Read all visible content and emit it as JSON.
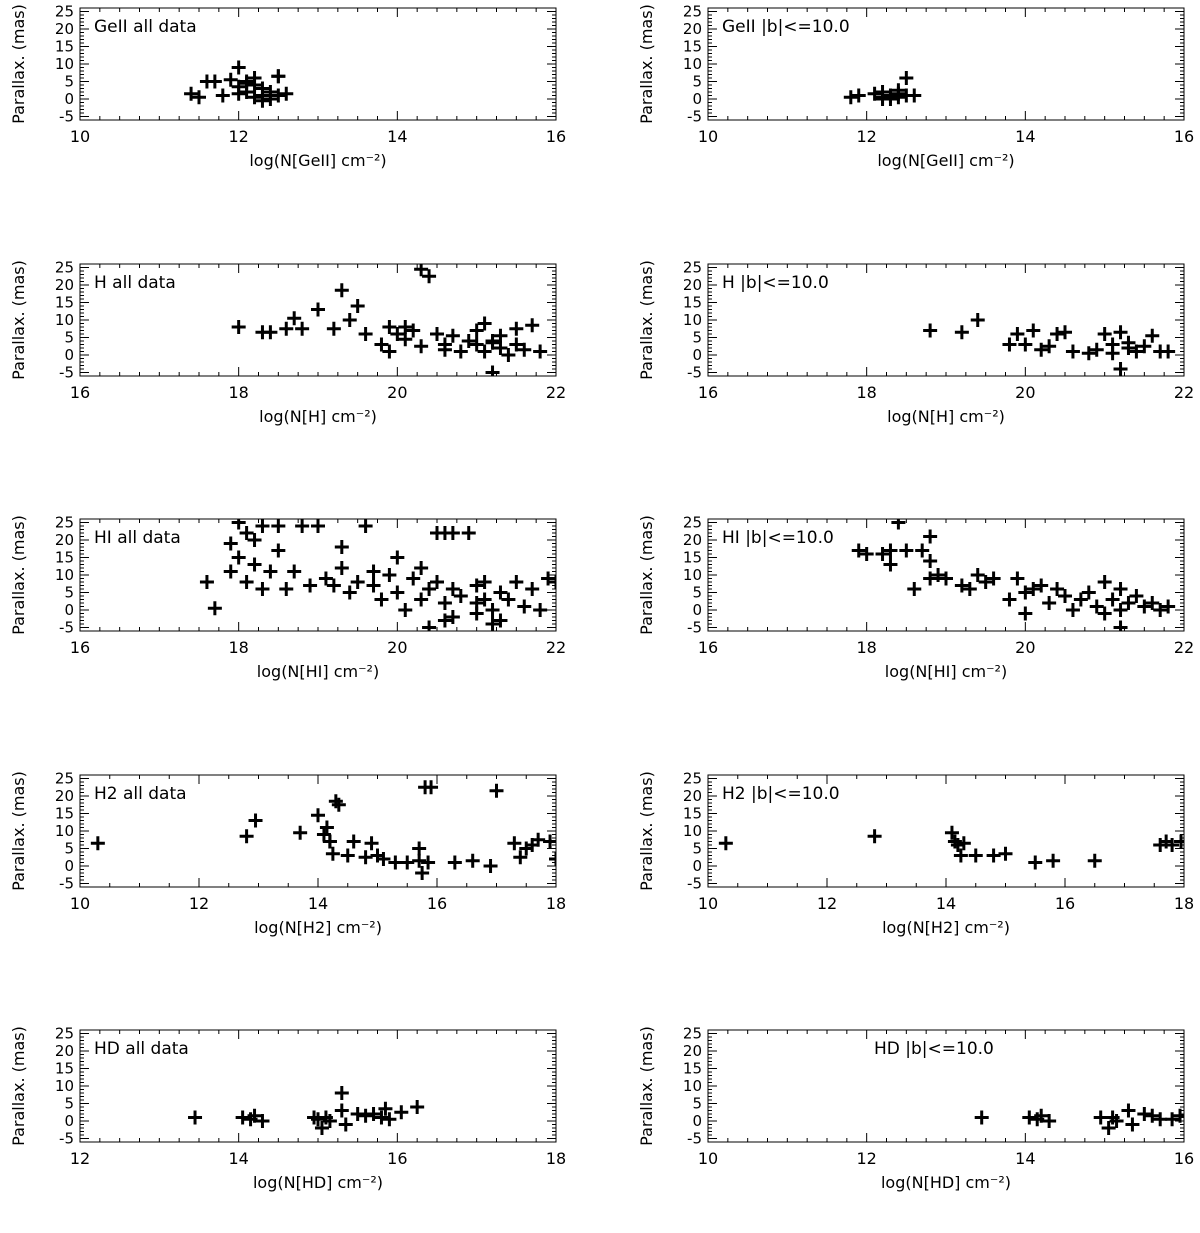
{
  "figure": {
    "y_label": "Parallax. (mas)",
    "y_ticks": [
      "25",
      "20",
      "15",
      "10",
      "5",
      "0",
      "-5"
    ]
  },
  "chart_data": [
    {
      "type": "scatter",
      "title": "GeII all data",
      "xlabel": "log(N[GeII] cm⁻²)",
      "ylabel": "Parallax. (mas)",
      "xlim": [
        10,
        16
      ],
      "ylim": [
        -6,
        26
      ],
      "xticks": [
        10,
        12,
        14,
        16
      ],
      "x": [
        11.4,
        11.5,
        11.6,
        11.7,
        11.8,
        11.9,
        12.0,
        12.0,
        12.1,
        12.1,
        12.2,
        12.2,
        12.3,
        12.3,
        12.4,
        12.4,
        12.5,
        12.5,
        12.6,
        12.0,
        12.1,
        12.2,
        12.3,
        12.5
      ],
      "y": [
        1.5,
        0.5,
        5.0,
        5.0,
        1.0,
        5.5,
        9.0,
        3.5,
        5.0,
        2.0,
        4.0,
        6.0,
        1.0,
        -0.5,
        2.0,
        0.0,
        6.5,
        6.5,
        1.5,
        1.5,
        4.5,
        0.5,
        3.0,
        1.0
      ]
    },
    {
      "type": "scatter",
      "title": "GeII |b|<=10.0",
      "xlabel": "log(N[GeII] cm⁻²)",
      "ylabel": "Parallax. (mas)",
      "xlim": [
        10,
        16
      ],
      "ylim": [
        -6,
        26
      ],
      "xticks": [
        10,
        12,
        14,
        16
      ],
      "x": [
        11.8,
        11.9,
        12.1,
        12.2,
        12.2,
        12.3,
        12.3,
        12.4,
        12.4,
        12.5,
        12.5,
        12.6,
        12.2,
        12.4
      ],
      "y": [
        0.5,
        1.0,
        1.5,
        0.0,
        2.0,
        1.0,
        0.0,
        2.5,
        1.5,
        1.0,
        6.0,
        1.0,
        0.5,
        0.5
      ]
    },
    {
      "type": "scatter",
      "title": "H all data",
      "xlabel": "log(N[H] cm⁻²)",
      "ylabel": "Parallax. (mas)",
      "xlim": [
        16,
        22
      ],
      "ylim": [
        -6,
        26
      ],
      "xticks": [
        16,
        18,
        20,
        22
      ],
      "x": [
        18.0,
        18.3,
        18.4,
        18.6,
        18.7,
        18.8,
        19.0,
        19.2,
        19.3,
        19.4,
        19.5,
        19.6,
        19.8,
        19.9,
        20.0,
        20.1,
        20.2,
        20.3,
        20.3,
        20.4,
        20.5,
        20.6,
        20.7,
        20.8,
        20.9,
        21.0,
        21.0,
        21.1,
        21.1,
        21.2,
        21.2,
        21.3,
        21.3,
        21.4,
        21.5,
        21.5,
        21.6,
        21.7,
        21.8,
        19.9,
        20.1,
        20.6,
        21.2
      ],
      "y": [
        8.0,
        6.5,
        6.5,
        7.5,
        10.5,
        7.5,
        13.0,
        7.5,
        18.5,
        10.0,
        14.0,
        6.0,
        3.0,
        8.0,
        6.0,
        4.5,
        7.0,
        24.5,
        2.5,
        22.5,
        6.0,
        3.0,
        5.5,
        1.0,
        4.0,
        3.0,
        7.0,
        1.0,
        9.0,
        3.5,
        -5.0,
        2.0,
        5.5,
        0.0,
        3.0,
        7.5,
        1.5,
        8.5,
        1.0,
        1.0,
        8.0,
        1.5,
        4.0
      ]
    },
    {
      "type": "scatter",
      "title": "H |b|<=10.0",
      "xlabel": "log(N[H] cm⁻²)",
      "ylabel": "Parallax. (mas)",
      "xlim": [
        16,
        22
      ],
      "ylim": [
        -6,
        26
      ],
      "xticks": [
        16,
        18,
        20,
        22
      ],
      "x": [
        18.8,
        19.2,
        19.4,
        19.8,
        19.9,
        20.0,
        20.1,
        20.2,
        20.3,
        20.5,
        20.6,
        20.8,
        20.9,
        21.0,
        21.1,
        21.2,
        21.2,
        21.3,
        21.3,
        21.4,
        21.5,
        21.6,
        21.7,
        21.8,
        20.4,
        21.1
      ],
      "y": [
        7.0,
        6.5,
        10.0,
        3.0,
        6.0,
        3.0,
        7.0,
        1.5,
        2.5,
        6.5,
        1.0,
        0.5,
        1.5,
        6.0,
        0.5,
        6.5,
        -4.0,
        2.0,
        3.5,
        1.0,
        2.5,
        5.5,
        1.0,
        1.0,
        6.0,
        3.0
      ]
    },
    {
      "type": "scatter",
      "title": "HI all data",
      "xlabel": "log(N[HI] cm⁻²)",
      "ylabel": "Parallax. (mas)",
      "xlim": [
        16,
        22
      ],
      "ylim": [
        -6,
        26
      ],
      "xticks": [
        16,
        18,
        20,
        22
      ],
      "x": [
        17.6,
        17.7,
        17.9,
        17.9,
        18.0,
        18.0,
        18.1,
        18.1,
        18.2,
        18.2,
        18.3,
        18.3,
        18.4,
        18.5,
        18.5,
        18.6,
        18.7,
        18.8,
        18.9,
        19.0,
        19.1,
        19.2,
        19.3,
        19.3,
        19.4,
        19.5,
        19.6,
        19.7,
        19.8,
        19.9,
        20.0,
        20.0,
        20.1,
        20.2,
        20.3,
        20.3,
        20.4,
        20.5,
        20.5,
        20.6,
        20.6,
        20.7,
        20.7,
        20.8,
        20.9,
        21.0,
        21.0,
        21.1,
        21.1,
        21.2,
        21.3,
        21.3,
        21.4,
        21.5,
        21.6,
        21.7,
        21.8,
        21.9,
        22.0,
        20.6,
        20.7,
        21.0,
        21.2,
        20.4,
        19.7
      ],
      "y": [
        8.0,
        0.5,
        19.0,
        11.0,
        25.0,
        15.0,
        22.0,
        8.0,
        20.0,
        13.0,
        24.0,
        6.0,
        11.0,
        24.0,
        17.0,
        6.0,
        11.0,
        24.0,
        7.0,
        24.0,
        9.0,
        7.0,
        18.0,
        12.0,
        5.0,
        8.0,
        24.0,
        7.0,
        3.0,
        10.0,
        15.0,
        5.0,
        0.0,
        9.0,
        3.0,
        12.0,
        6.0,
        22.0,
        8.0,
        22.0,
        2.0,
        6.0,
        -2.0,
        4.0,
        22.0,
        7.0,
        -1.0,
        3.0,
        8.0,
        0.0,
        5.0,
        -3.0,
        3.0,
        8.0,
        1.0,
        6.0,
        0.0,
        9.0,
        8.0,
        -3.0,
        22.0,
        2.0,
        -4.0,
        -5.0,
        11.0
      ]
    },
    {
      "type": "scatter",
      "title": "HI |b|<=10.0",
      "xlabel": "log(N[HI] cm⁻²)",
      "ylabel": "Parallax. (mas)",
      "xlim": [
        16,
        22
      ],
      "ylim": [
        -6,
        26
      ],
      "xticks": [
        16,
        18,
        20,
        22
      ],
      "x": [
        17.9,
        18.0,
        18.2,
        18.3,
        18.3,
        18.4,
        18.5,
        18.6,
        18.7,
        18.8,
        18.8,
        18.8,
        18.9,
        19.0,
        19.2,
        19.3,
        19.4,
        19.5,
        19.6,
        19.8,
        19.9,
        20.0,
        20.0,
        20.2,
        20.3,
        20.4,
        20.5,
        20.6,
        20.7,
        20.8,
        20.9,
        21.0,
        21.0,
        21.1,
        21.2,
        21.2,
        21.3,
        21.4,
        21.5,
        21.6,
        21.7,
        21.8,
        20.1,
        21.2
      ],
      "y": [
        17.0,
        16.0,
        16.0,
        17.0,
        13.0,
        25.0,
        17.0,
        6.0,
        17.0,
        21.0,
        14.0,
        9.0,
        10.0,
        9.0,
        7.0,
        6.0,
        10.0,
        8.0,
        9.0,
        3.0,
        9.0,
        5.0,
        -1.0,
        7.0,
        2.0,
        6.0,
        4.0,
        0.0,
        3.0,
        5.0,
        1.0,
        8.0,
        -1.0,
        3.0,
        6.0,
        0.0,
        2.0,
        4.0,
        1.0,
        2.0,
        0.0,
        1.0,
        6.0,
        -5.0
      ]
    },
    {
      "type": "scatter",
      "title": "H2 all data",
      "xlabel": "log(N[H2] cm⁻²)",
      "ylabel": "Parallax. (mas)",
      "xlim": [
        10,
        18
      ],
      "ylim": [
        -6,
        26
      ],
      "xticks": [
        10,
        12,
        14,
        16,
        18
      ],
      "x": [
        10.3,
        12.8,
        12.95,
        13.7,
        14.0,
        14.1,
        14.15,
        14.2,
        14.25,
        14.3,
        14.35,
        14.5,
        14.6,
        14.8,
        14.9,
        15.0,
        15.1,
        15.3,
        15.5,
        15.7,
        15.75,
        15.8,
        15.85,
        15.9,
        16.3,
        16.6,
        16.9,
        17.0,
        17.3,
        17.4,
        17.5,
        17.6,
        17.7,
        17.9,
        18.0,
        14.2,
        15.7
      ],
      "y": [
        6.5,
        8.5,
        13.0,
        9.5,
        14.5,
        9.0,
        11.0,
        7.0,
        3.5,
        18.5,
        17.5,
        3.0,
        7.0,
        2.5,
        6.5,
        3.0,
        2.0,
        1.0,
        1.0,
        5.0,
        -2.0,
        22.5,
        1.0,
        22.5,
        1.0,
        1.5,
        0.0,
        21.5,
        6.5,
        2.5,
        5.0,
        6.0,
        7.5,
        7.0,
        2.0,
        7.0,
        1.5
      ]
    },
    {
      "type": "scatter",
      "title": "H2 |b|<=10.0",
      "xlabel": "log(N[H2] cm⁻²)",
      "ylabel": "Parallax. (mas)",
      "xlim": [
        10,
        18
      ],
      "ylim": [
        -6,
        26
      ],
      "xticks": [
        10,
        12,
        14,
        16,
        18
      ],
      "x": [
        10.3,
        12.8,
        14.1,
        14.15,
        14.2,
        14.25,
        14.3,
        14.5,
        14.8,
        15.0,
        15.5,
        15.8,
        16.5,
        17.6,
        17.7,
        17.8,
        17.95
      ],
      "y": [
        6.5,
        8.5,
        9.5,
        7.0,
        6.0,
        3.0,
        6.5,
        3.0,
        3.0,
        3.5,
        1.0,
        1.5,
        1.5,
        6.0,
        7.0,
        6.0,
        7.0
      ]
    },
    {
      "type": "scatter",
      "title": "HD all data",
      "xlabel": "log(N[HD] cm⁻²)",
      "ylabel": "Parallax. (mas)",
      "xlim": [
        12,
        18
      ],
      "ylim": [
        -6,
        26
      ],
      "xticks": [
        12,
        14,
        16,
        18
      ],
      "x": [
        13.45,
        14.05,
        14.15,
        14.2,
        14.3,
        14.95,
        15.0,
        15.05,
        15.1,
        15.15,
        15.3,
        15.3,
        15.35,
        15.5,
        15.6,
        15.7,
        15.8,
        15.85,
        15.9,
        16.05,
        16.25
      ],
      "y": [
        1.0,
        1.0,
        0.5,
        1.5,
        0.0,
        1.0,
        0.5,
        -2.0,
        1.0,
        0.0,
        8.0,
        3.0,
        -1.0,
        2.0,
        1.5,
        2.0,
        1.0,
        3.5,
        0.5,
        2.5,
        4.0
      ]
    },
    {
      "type": "scatter",
      "title": "HD |b|<=10.0",
      "xlabel": "log(N[HD] cm⁻²)",
      "ylabel": "Parallax. (mas)",
      "xlim": [
        10,
        16
      ],
      "ylim": [
        -6,
        26
      ],
      "xticks": [
        10,
        12,
        14,
        16
      ],
      "x": [
        13.45,
        14.05,
        14.15,
        14.2,
        14.3,
        14.95,
        15.05,
        15.1,
        15.15,
        15.3,
        15.35,
        15.5,
        15.6,
        15.7,
        15.85,
        15.95
      ],
      "y": [
        1.0,
        1.0,
        0.5,
        1.5,
        0.0,
        1.0,
        -2.0,
        1.0,
        0.0,
        3.0,
        -1.0,
        2.0,
        1.5,
        0.5,
        0.5,
        1.5
      ]
    }
  ]
}
